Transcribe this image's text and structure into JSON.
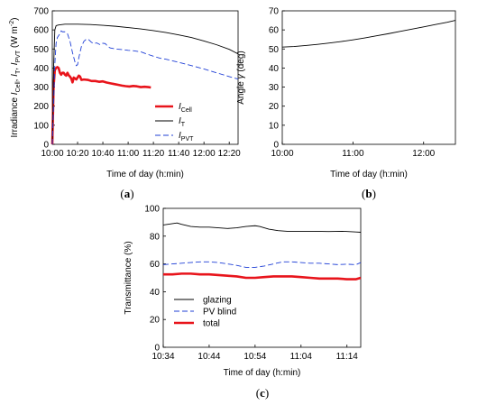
{
  "chart_data": [
    {
      "id": "a",
      "type": "line",
      "panel_label": "a",
      "xlabel": "Time of day (h:min)",
      "ylabel_parts": {
        "base": "Irradiance ",
        "i1": "I",
        "s1": "Cell",
        "sep1": ", ",
        "i2": "I",
        "s2": "T",
        "sep2": ", ",
        "i3": "I",
        "s3": "PVT",
        "unit_a": " (W m",
        "unit_exp": "-2",
        "unit_b": ")"
      },
      "xlim": [
        "10:00",
        "12:27"
      ],
      "xticks": [
        "10:00",
        "10:20",
        "10:40",
        "11:00",
        "11:20",
        "11:40",
        "12:00",
        "12:20"
      ],
      "ylim": [
        0,
        700
      ],
      "yticks": [
        0,
        100,
        200,
        300,
        400,
        500,
        600,
        700
      ],
      "legend_position": "center-right",
      "series": [
        {
          "name_main": "I",
          "name_sub": "Cell",
          "color": "#e8141b",
          "style": "solid",
          "width": "thick",
          "points": [
            [
              "10:00",
              0
            ],
            [
              "10:01",
              300
            ],
            [
              "10:02",
              390
            ],
            [
              "10:03",
              400
            ],
            [
              "10:04",
              405
            ],
            [
              "10:05",
              400
            ],
            [
              "10:06",
              375
            ],
            [
              "10:07",
              365
            ],
            [
              "10:08",
              375
            ],
            [
              "10:09",
              375
            ],
            [
              "10:10",
              365
            ],
            [
              "10:11",
              360
            ],
            [
              "10:12",
              375
            ],
            [
              "10:13",
              362
            ],
            [
              "10:14",
              355
            ],
            [
              "10:15",
              345
            ],
            [
              "10:16",
              325
            ],
            [
              "10:17",
              350
            ],
            [
              "10:18",
              345
            ],
            [
              "10:19",
              340
            ],
            [
              "10:20",
              350
            ],
            [
              "10:21",
              360
            ],
            [
              "10:22",
              355
            ],
            [
              "10:23",
              338
            ],
            [
              "10:25",
              340
            ],
            [
              "10:28",
              338
            ],
            [
              "10:31",
              332
            ],
            [
              "10:34",
              332
            ],
            [
              "10:37",
              328
            ],
            [
              "10:40",
              330
            ],
            [
              "10:43",
              324
            ],
            [
              "10:46",
              320
            ],
            [
              "10:49",
              316
            ],
            [
              "10:52",
              312
            ],
            [
              "10:55",
              308
            ],
            [
              "10:58",
              305
            ],
            [
              "11:01",
              303
            ],
            [
              "11:04",
              306
            ],
            [
              "11:07",
              304
            ],
            [
              "11:10",
              300
            ],
            [
              "11:13",
              302
            ],
            [
              "11:16",
              300
            ],
            [
              "11:18",
              298
            ]
          ]
        },
        {
          "name_main": "I",
          "name_sub": "T",
          "color": "#000000",
          "style": "solid",
          "width": "thin",
          "points": [
            [
              "10:00",
              0
            ],
            [
              "10:01",
              400
            ],
            [
              "10:02",
              600
            ],
            [
              "10:03",
              622
            ],
            [
              "10:05",
              626
            ],
            [
              "10:10",
              630
            ],
            [
              "10:20",
              630
            ],
            [
              "10:30",
              628
            ],
            [
              "10:40",
              624
            ],
            [
              "10:50",
              619
            ],
            [
              "11:00",
              612
            ],
            [
              "11:10",
              605
            ],
            [
              "11:20",
              596
            ],
            [
              "11:30",
              586
            ],
            [
              "11:40",
              574
            ],
            [
              "11:50",
              560
            ],
            [
              "12:00",
              542
            ],
            [
              "12:10",
              522
            ],
            [
              "12:20",
              498
            ],
            [
              "12:27",
              474
            ]
          ]
        },
        {
          "name_main": "I",
          "name_sub": "PVT",
          "color": "#1f3fd6",
          "style": "dashed",
          "width": "thin",
          "points": [
            [
              "10:00",
              0
            ],
            [
              "10:01",
              200
            ],
            [
              "10:02",
              420
            ],
            [
              "10:03",
              530
            ],
            [
              "10:04",
              560
            ],
            [
              "10:05",
              570
            ],
            [
              "10:06",
              580
            ],
            [
              "10:07",
              595
            ],
            [
              "10:08",
              590
            ],
            [
              "10:10",
              590
            ],
            [
              "10:12",
              580
            ],
            [
              "10:14",
              540
            ],
            [
              "10:16",
              480
            ],
            [
              "10:18",
              430
            ],
            [
              "10:19",
              412
            ],
            [
              "10:20",
              418
            ],
            [
              "10:21",
              455
            ],
            [
              "10:23",
              512
            ],
            [
              "10:25",
              540
            ],
            [
              "10:27",
              552
            ],
            [
              "10:29",
              548
            ],
            [
              "10:31",
              535
            ],
            [
              "10:33",
              528
            ],
            [
              "10:35",
              532
            ],
            [
              "10:38",
              522
            ],
            [
              "10:40",
              530
            ],
            [
              "10:42",
              528
            ],
            [
              "10:44",
              512
            ],
            [
              "10:46",
              505
            ],
            [
              "10:50",
              500
            ],
            [
              "10:55",
              497
            ],
            [
              "11:00",
              493
            ],
            [
              "11:05",
              490
            ],
            [
              "11:10",
              485
            ],
            [
              "11:15",
              473
            ],
            [
              "11:20",
              462
            ],
            [
              "11:25",
              452
            ],
            [
              "11:30",
              446
            ],
            [
              "11:40",
              430
            ],
            [
              "11:50",
              413
            ],
            [
              "12:00",
              395
            ],
            [
              "12:10",
              375
            ],
            [
              "12:20",
              355
            ],
            [
              "12:27",
              342
            ]
          ]
        }
      ]
    },
    {
      "id": "b",
      "type": "line",
      "panel_label": "b",
      "xlabel": "Time of day (h:min)",
      "ylabel_parts": {
        "base": "Angle ",
        "sym": "γ",
        "unit": " (deg)"
      },
      "xlim": [
        "10:00",
        "12:27"
      ],
      "xticks": [
        "10:00",
        "11:00",
        "12:00"
      ],
      "ylim": [
        0,
        70
      ],
      "yticks": [
        0,
        10,
        20,
        30,
        40,
        50,
        60,
        70
      ],
      "series": [
        {
          "color": "#000000",
          "style": "solid",
          "width": "thin",
          "points": [
            [
              "10:00",
              51
            ],
            [
              "10:10",
              51.3
            ],
            [
              "10:20",
              51.8
            ],
            [
              "10:30",
              52.4
            ],
            [
              "10:40",
              53.1
            ],
            [
              "10:50",
              53.9
            ],
            [
              "11:00",
              54.8
            ],
            [
              "11:10",
              55.8
            ],
            [
              "11:20",
              56.9
            ],
            [
              "11:30",
              58.0
            ],
            [
              "11:40",
              59.2
            ],
            [
              "11:50",
              60.4
            ],
            [
              "12:00",
              61.6
            ],
            [
              "12:10",
              62.8
            ],
            [
              "12:20",
              64.0
            ],
            [
              "12:27",
              65.0
            ]
          ]
        }
      ]
    },
    {
      "id": "c",
      "type": "line",
      "panel_label": "c",
      "xlabel": "Time of day (h:min)",
      "ylabel": "Transmittance (%)",
      "xlim": [
        "10:34",
        "11:17"
      ],
      "xticks": [
        "10:34",
        "10:44",
        "10:54",
        "11:04",
        "11:14"
      ],
      "ylim": [
        0,
        100
      ],
      "yticks": [
        0,
        20,
        40,
        60,
        80,
        100
      ],
      "legend_position": "lower-left",
      "series": [
        {
          "name": "glazing",
          "color": "#000000",
          "style": "solid",
          "width": "thin",
          "points": [
            [
              "10:34",
              88
            ],
            [
              "10:36",
              89
            ],
            [
              "10:37",
              89.5
            ],
            [
              "10:38",
              88.5
            ],
            [
              "10:40",
              87
            ],
            [
              "10:42",
              86.5
            ],
            [
              "10:44",
              86.5
            ],
            [
              "10:46",
              86
            ],
            [
              "10:48",
              85.5
            ],
            [
              "10:50",
              86
            ],
            [
              "10:52",
              87
            ],
            [
              "10:54",
              87.5
            ],
            [
              "10:55",
              87
            ],
            [
              "10:57",
              85
            ],
            [
              "10:59",
              84
            ],
            [
              "11:01",
              83.5
            ],
            [
              "11:04",
              83.5
            ],
            [
              "11:07",
              83.5
            ],
            [
              "11:10",
              83.3
            ],
            [
              "11:13",
              83.5
            ],
            [
              "11:16",
              83
            ],
            [
              "11:17",
              82.8
            ]
          ]
        },
        {
          "name": "PV blind",
          "color": "#1f3fd6",
          "style": "dashed",
          "width": "thin",
          "points": [
            [
              "10:34",
              59.5
            ],
            [
              "10:36",
              60
            ],
            [
              "10:38",
              60.5
            ],
            [
              "10:40",
              61
            ],
            [
              "10:42",
              61.5
            ],
            [
              "10:44",
              61.5
            ],
            [
              "10:46",
              61
            ],
            [
              "10:48",
              60
            ],
            [
              "10:50",
              59
            ],
            [
              "10:52",
              57.5
            ],
            [
              "10:54",
              57.5
            ],
            [
              "10:56",
              58.5
            ],
            [
              "10:58",
              60
            ],
            [
              "11:00",
              61.5
            ],
            [
              "11:02",
              61.5
            ],
            [
              "11:04",
              61
            ],
            [
              "11:06",
              60.5
            ],
            [
              "11:08",
              60.5
            ],
            [
              "11:10",
              60
            ],
            [
              "11:12",
              59.5
            ],
            [
              "11:14",
              59.8
            ],
            [
              "11:16",
              59.5
            ],
            [
              "11:17",
              61
            ]
          ]
        },
        {
          "name": "total",
          "color": "#e8141b",
          "style": "solid",
          "width": "thick",
          "points": [
            [
              "10:34",
              52.5
            ],
            [
              "10:36",
              52.5
            ],
            [
              "10:38",
              53
            ],
            [
              "10:40",
              53
            ],
            [
              "10:42",
              52.5
            ],
            [
              "10:44",
              52.5
            ],
            [
              "10:46",
              52
            ],
            [
              "10:48",
              51.5
            ],
            [
              "10:50",
              51
            ],
            [
              "10:52",
              50
            ],
            [
              "10:54",
              50
            ],
            [
              "10:56",
              50.5
            ],
            [
              "10:58",
              51
            ],
            [
              "11:00",
              51
            ],
            [
              "11:02",
              51
            ],
            [
              "11:04",
              50.5
            ],
            [
              "11:06",
              50
            ],
            [
              "11:08",
              49.5
            ],
            [
              "11:10",
              49.5
            ],
            [
              "11:12",
              49.5
            ],
            [
              "11:14",
              49
            ],
            [
              "11:16",
              49
            ],
            [
              "11:17",
              50
            ]
          ]
        }
      ]
    }
  ]
}
